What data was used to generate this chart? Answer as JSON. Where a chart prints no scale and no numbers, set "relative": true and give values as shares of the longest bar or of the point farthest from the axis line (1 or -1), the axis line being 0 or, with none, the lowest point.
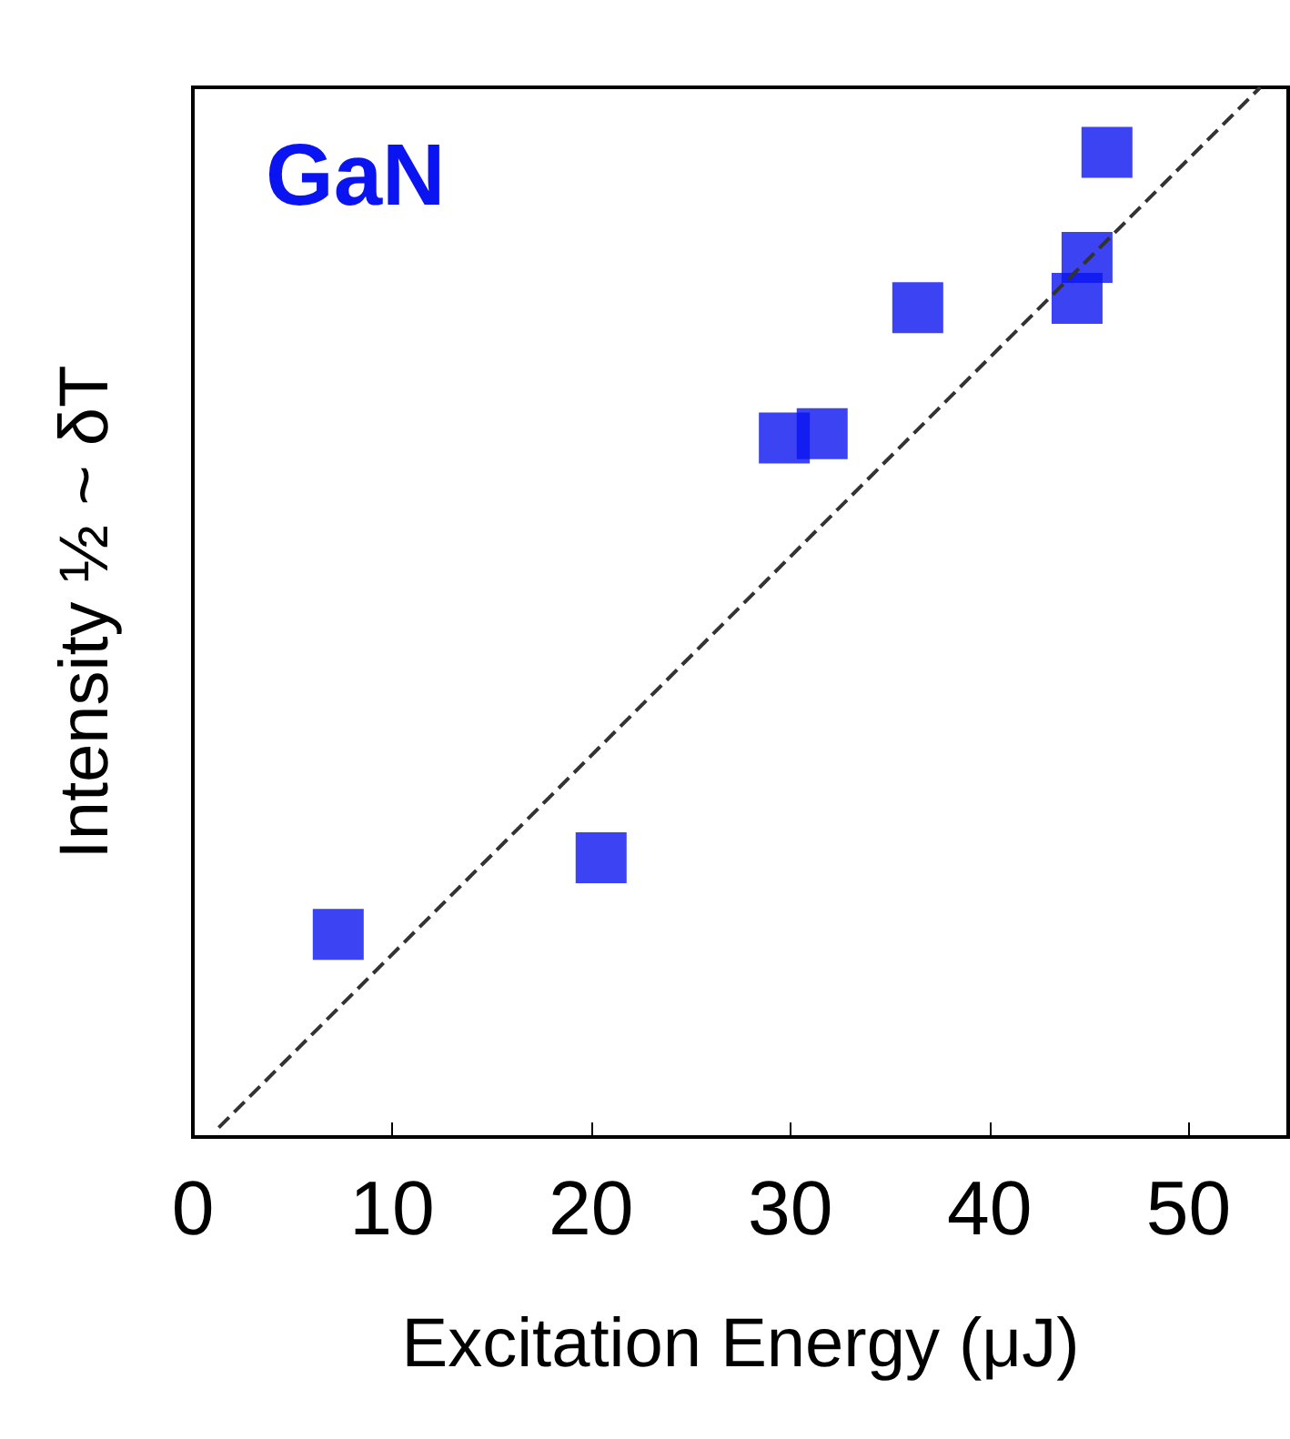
{
  "chart_data": {
    "type": "scatter",
    "relative": true,
    "xlabel": "Excitation Energy (μJ)",
    "ylabel": "Intensity ½ ~ δT",
    "annotations": [
      "GaN"
    ],
    "xlim": [
      0,
      55
    ],
    "xticks": [
      0,
      10,
      20,
      30,
      40,
      50
    ],
    "marker": "square",
    "grid": false,
    "series": [
      {
        "type": "scatter",
        "color": "#0a14f0",
        "x": [
          7.3,
          20.5,
          29.7,
          31.6,
          36.4,
          44.4,
          44.9,
          45.9
        ],
        "values": [
          0.193,
          0.266,
          0.666,
          0.67,
          0.79,
          0.799,
          0.838,
          0.938
        ]
      },
      {
        "type": "line",
        "color": "#333333",
        "line_style": "dashed",
        "marker": "none",
        "x": [
          1.3,
          53.6
        ],
        "values": [
          0.009,
          1
        ]
      }
    ]
  }
}
